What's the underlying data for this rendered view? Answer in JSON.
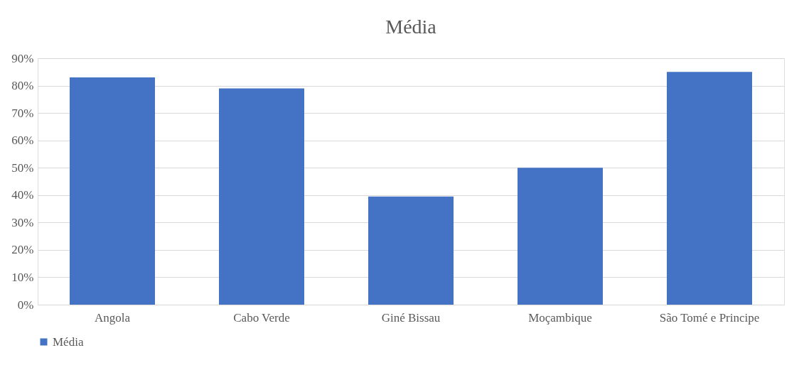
{
  "chart_data": {
    "type": "bar",
    "title": "Média",
    "categories": [
      "Angola",
      "Cabo Verde",
      "Giné Bissau",
      "Moçambique",
      "São Tomé e Principe"
    ],
    "series": [
      {
        "name": "Média",
        "color": "#4472c4",
        "values": [
          83,
          79,
          39.5,
          50,
          85
        ]
      }
    ],
    "ylim": [
      0,
      90
    ],
    "yticks": [
      {
        "value": 0,
        "label": "0%"
      },
      {
        "value": 10,
        "label": "10%"
      },
      {
        "value": 20,
        "label": "20%"
      },
      {
        "value": 30,
        "label": "30%"
      },
      {
        "value": 40,
        "label": "40%"
      },
      {
        "value": 50,
        "label": "50%"
      },
      {
        "value": 60,
        "label": "60%"
      },
      {
        "value": 70,
        "label": "70%"
      },
      {
        "value": 80,
        "label": "80%"
      },
      {
        "value": 90,
        "label": "90%"
      }
    ],
    "grid": "y",
    "legend": "bottom"
  }
}
